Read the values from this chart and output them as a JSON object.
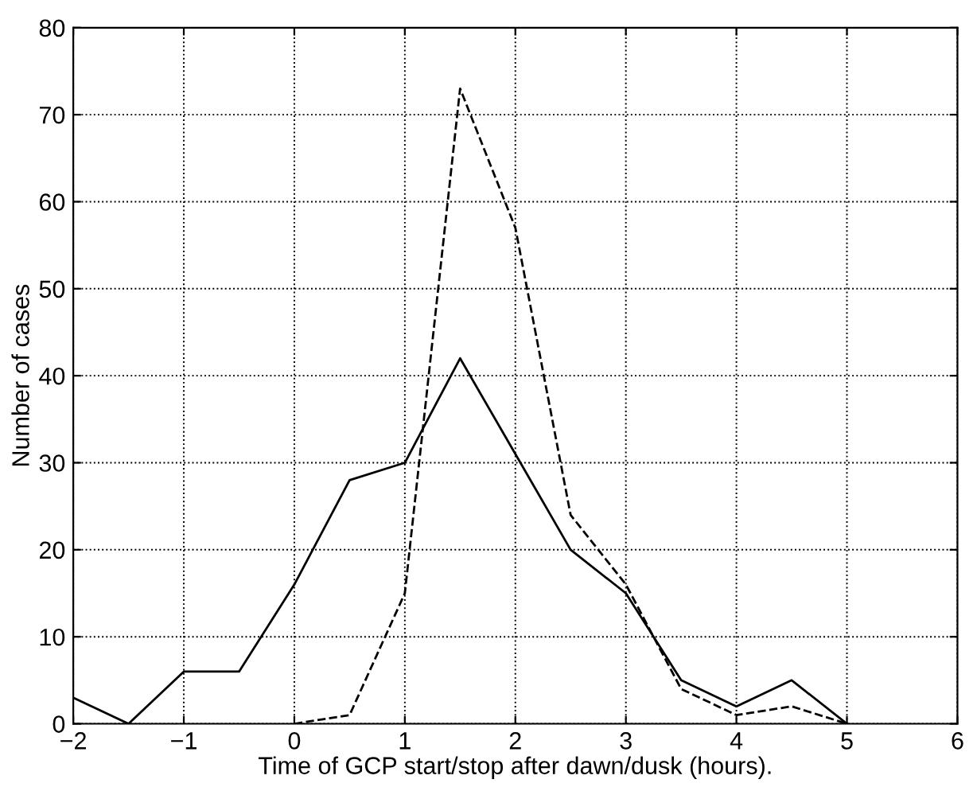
{
  "chart_data": {
    "type": "line",
    "xlabel": "Time of GCP start/stop after dawn/dusk (hours).",
    "ylabel": "Number of cases",
    "xlim": [
      -2,
      6
    ],
    "xticks": [
      {
        "value": -2,
        "label": "−2"
      },
      {
        "value": -1,
        "label": "−1"
      },
      0,
      1,
      2,
      3,
      4,
      5,
      6
    ],
    "ylim": [
      0,
      80
    ],
    "yticks": [
      0,
      10,
      20,
      30,
      40,
      50,
      60,
      70,
      80
    ],
    "grid": true,
    "series": [
      {
        "color": "#000000",
        "line_style": "solid",
        "x": [
          -2,
          -1.5,
          -1,
          -0.5,
          0,
          0.5,
          1,
          1.5,
          2,
          2.5,
          3,
          3.5,
          4,
          4.5,
          5
        ],
        "values": [
          3,
          0,
          6,
          6,
          16,
          28,
          30,
          42,
          31,
          20,
          15,
          5,
          2,
          5,
          0
        ]
      },
      {
        "color": "#000000",
        "line_style": "dashed",
        "x": [
          0,
          0.5,
          1,
          1.5,
          2,
          2.5,
          3,
          3.5,
          4,
          4.5,
          5
        ],
        "values": [
          0,
          1,
          15,
          73,
          57,
          24,
          16,
          4,
          1,
          2,
          0
        ]
      }
    ]
  }
}
